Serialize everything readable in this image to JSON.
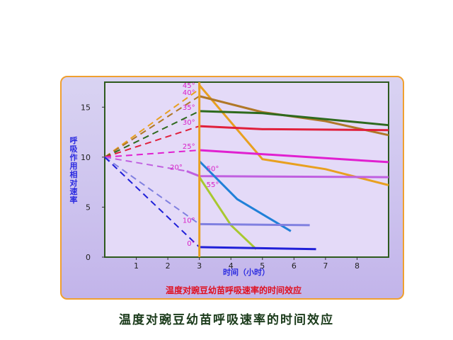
{
  "chart_data": {
    "type": "line",
    "title": "温度对豌豆幼苗呼吸速率的时间效应",
    "xlabel": "时间（小时）",
    "ylabel": "呼吸作用相对速率",
    "xlim": [
      0,
      9
    ],
    "ylim": [
      0,
      17.5
    ],
    "xticks": [
      1,
      2,
      3,
      4,
      5,
      6,
      7,
      8
    ],
    "yticks": [
      0,
      5,
      10,
      15
    ],
    "grid": false,
    "series": [
      {
        "name": "45°",
        "color": "#e8a020",
        "x": [
          0,
          3,
          3,
          5,
          7,
          9
        ],
        "y": [
          10,
          16.8,
          17.2,
          9.8,
          8.8,
          7.2
        ],
        "dashed_until": 3
      },
      {
        "name": "40°",
        "color": "#b07828",
        "x": [
          0,
          3,
          5,
          7,
          9
        ],
        "y": [
          10,
          16.1,
          14.5,
          13.6,
          12.2
        ],
        "dashed_until": 3
      },
      {
        "name": "35°",
        "color": "#2e6a1e",
        "x": [
          0,
          3,
          5,
          9
        ],
        "y": [
          10,
          14.6,
          14.4,
          13.2
        ],
        "dashed_until": 3
      },
      {
        "name": "30°",
        "color": "#e0203c",
        "x": [
          0,
          3,
          5,
          9
        ],
        "y": [
          10,
          13.1,
          12.8,
          12.7
        ],
        "dashed_until": 3
      },
      {
        "name": "25°",
        "color": "#e020d0",
        "x": [
          0,
          3,
          9
        ],
        "y": [
          10,
          10.7,
          9.5
        ],
        "dashed_until": 3
      },
      {
        "name": "20°",
        "color": "#c060e0",
        "x": [
          0,
          2.6,
          3,
          9
        ],
        "y": [
          10,
          8.6,
          8.1,
          8.0
        ],
        "dashed_until": 2.6
      },
      {
        "name": "50°",
        "color": "#2080d8",
        "x": [
          3,
          4.2,
          5.9
        ],
        "y": [
          9.6,
          5.8,
          2.6
        ]
      },
      {
        "name": "55°",
        "color": "#a8c830",
        "x": [
          3,
          4,
          4.8
        ],
        "y": [
          8.0,
          3.2,
          0.8
        ]
      },
      {
        "name": "10°",
        "color": "#8080e0",
        "x": [
          0,
          3,
          6.5
        ],
        "y": [
          10,
          3.3,
          3.2
        ],
        "dashed_until": 3
      },
      {
        "name": "0°",
        "color": "#2020d8",
        "x": [
          0,
          3,
          6.7
        ],
        "y": [
          10,
          1.0,
          0.8
        ],
        "dashed_until": 3
      }
    ],
    "annotations": {
      "marker_x": 3,
      "marker_color": "#e8a020"
    }
  },
  "caption_inner": "温度对豌豆幼苗呼吸速率的时间效应",
  "caption_bottom": "温度对豌豆幼苗呼吸速率的时间效应"
}
